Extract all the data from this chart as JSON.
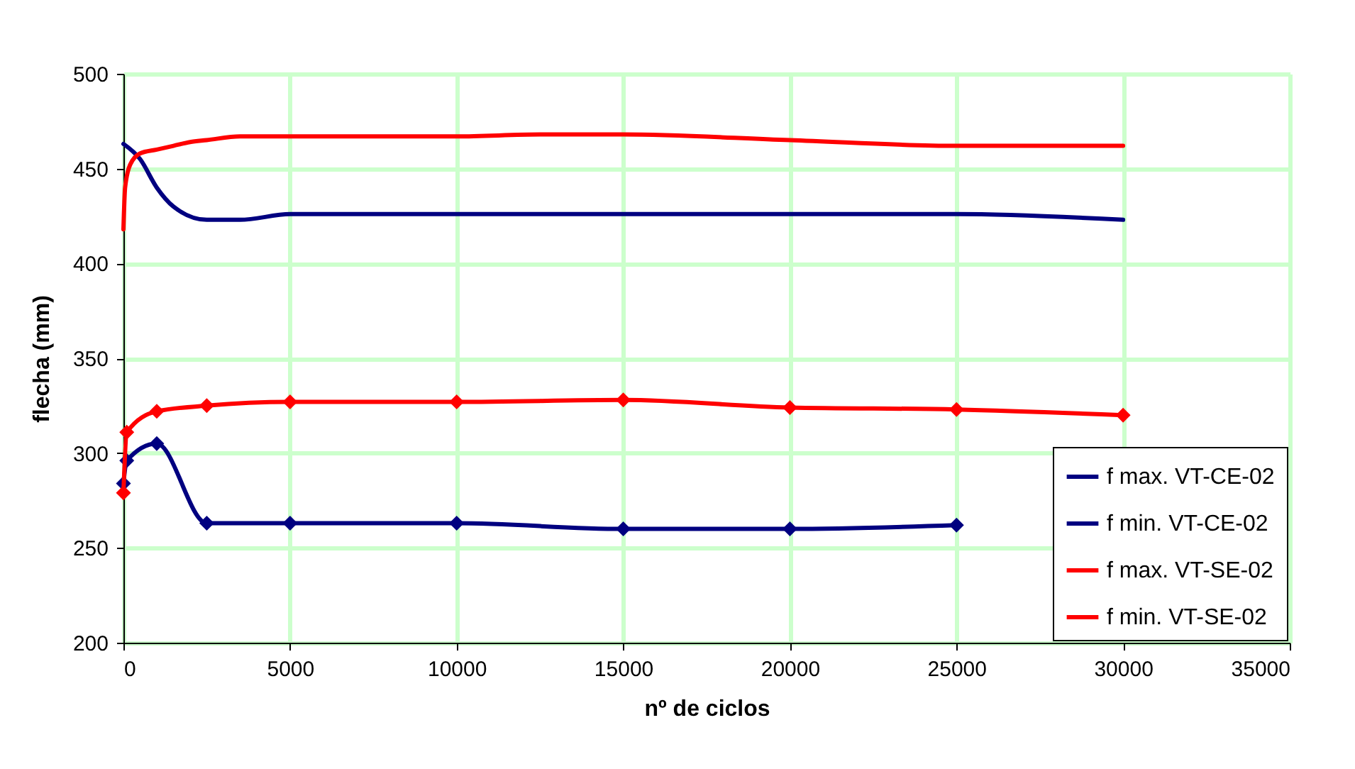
{
  "chart_data": {
    "type": "line",
    "xlabel": "nº de ciclos",
    "ylabel": "flecha (mm)",
    "xlim": [
      0,
      35000
    ],
    "xticks": [
      0,
      5000,
      10000,
      15000,
      20000,
      25000,
      30000,
      35000
    ],
    "ylim": [
      200,
      500
    ],
    "yticks": [
      200,
      250,
      300,
      350,
      400,
      450,
      500
    ],
    "grid": true,
    "legend": "bottom right",
    "line_style": "solid",
    "series": [
      {
        "name": "f max. VT-CE-02",
        "color": "#000080",
        "marker": "none",
        "x": [
          0,
          500,
          1000,
          1500,
          2500,
          3500,
          5000,
          25000,
          30000
        ],
        "values": [
          463,
          455,
          440,
          430,
          423,
          423,
          426,
          426,
          423
        ]
      },
      {
        "name": "f min. VT-CE-02",
        "color": "#000080",
        "marker": "diamond",
        "x": [
          0,
          100,
          1000,
          2500,
          5000,
          10000,
          15000,
          20000,
          25000
        ],
        "values": [
          284,
          296,
          305,
          263,
          263,
          263,
          260,
          260,
          262
        ]
      },
      {
        "name": "f max. VT-SE-02",
        "color": "#ff0000",
        "marker": "none",
        "x": [
          0,
          50,
          200,
          500,
          1000,
          1500,
          2000,
          2500,
          3500,
          10000,
          12500,
          15000,
          20000,
          25000,
          30000
        ],
        "values": [
          418,
          440,
          452,
          458,
          460,
          462,
          464,
          465,
          467,
          467,
          468,
          468,
          465,
          462,
          462
        ]
      },
      {
        "name": "f min. VT-SE-02",
        "color": "#ff0000",
        "marker": "diamond",
        "x": [
          0,
          100,
          1000,
          2500,
          5000,
          10000,
          15000,
          20000,
          25000,
          30000
        ],
        "values": [
          279,
          311,
          322,
          325,
          327,
          327,
          328,
          324,
          323,
          320
        ]
      }
    ]
  }
}
